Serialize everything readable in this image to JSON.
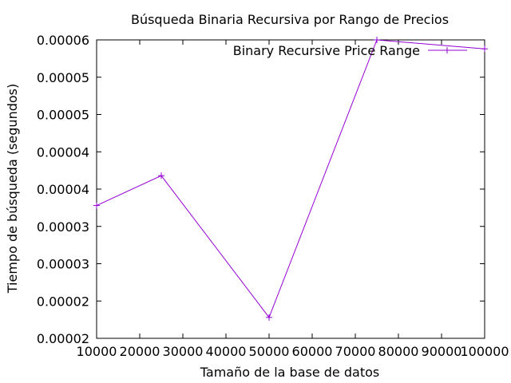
{
  "chart_data": {
    "type": "line",
    "title": "Búsqueda Binaria Recursiva por Rango de Precios",
    "xlabel": "Tamaño de la base de datos",
    "ylabel": "Tiempo de búsqueda (segundos)",
    "xlim": [
      10000,
      100000
    ],
    "ylim": [
      2e-05,
      6e-05
    ],
    "x_ticks": [
      10000,
      20000,
      30000,
      40000,
      50000,
      60000,
      70000,
      80000,
      90000,
      100000
    ],
    "x_tick_labels": [
      "10000",
      "20000",
      "30000",
      "40000",
      "50000",
      "60000",
      "70000",
      "80000",
      "90000",
      "100000"
    ],
    "y_ticks": [
      2e-05,
      2.5e-05,
      3e-05,
      3.5e-05,
      4e-05,
      4.5e-05,
      5e-05,
      5.5e-05,
      6e-05
    ],
    "y_tick_labels": [
      "0.00002",
      "0.00002",
      "0.00003",
      "0.00003",
      "0.00004",
      "0.00004",
      "0.00005",
      "0.00005",
      "0.00006"
    ],
    "grid": false,
    "legend_position": "top-right",
    "series": [
      {
        "name": "Binary Recursive Price Range",
        "color": "#9400d3",
        "marker": "plus",
        "x": [
          10000,
          25000,
          50000,
          75000,
          100000
        ],
        "y": [
          3.78e-05,
          4.18e-05,
          2.28e-05,
          6e-05,
          5.88e-05
        ]
      }
    ]
  }
}
